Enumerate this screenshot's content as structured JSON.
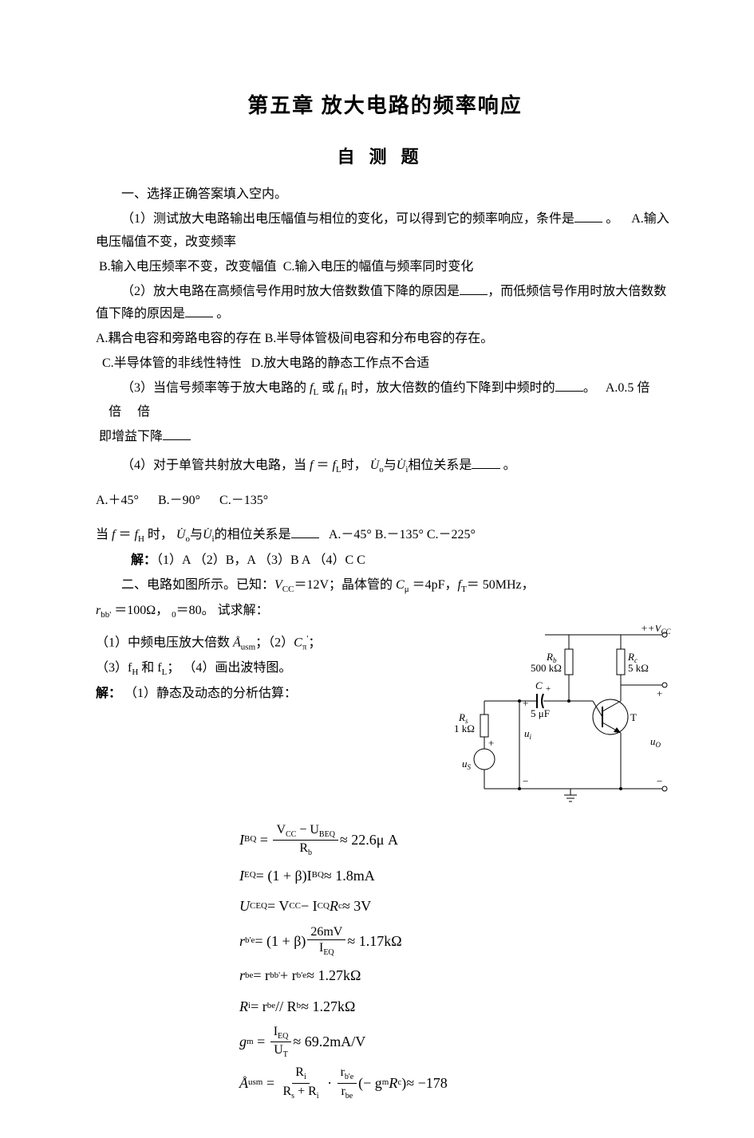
{
  "title": "第五章  放大电路的频率响应",
  "subtitle": "自测题",
  "sec1_heading": "一、选择正确答案填入空内。",
  "q1_text": "（1）测试放大电路输出电压幅值与相位的变化，可以得到它的频率响应，条件是",
  "q1_after": " 。",
  "q1_A": "A.输入电压幅值不变，改变频率",
  "q1_B": "B.输入电压频率不变，改变幅值",
  "q1_C": "C.输入电压的幅值与频率同时变化",
  "q2_text": "（2）放大电路在高频信号作用时放大倍数数值下降的原因是",
  "q2_mid": "，而低频信号作用时放大倍数数值下降的原因是",
  "q2_after": " 。",
  "q2_A": "A.耦合电容和旁路电容的存在",
  "q2_B": "B.半导体管极间电容和分布电容的存在。",
  "q2_C": "C.半导体管的非线性特性",
  "q2_D": "D.放大电路的静态工作点不合适",
  "q3_a": "（3）当信号频率等于放大电路的 ",
  "q3_fl": "f",
  "q3_flsub": "L",
  "q3_mid1": " 或 ",
  "q3_fh": "f",
  "q3_fhsub": "H",
  "q3_b": " 时，放大倍数的值约下降到中频时的",
  "q3_after1": "。",
  "q3_A": "A.0.5 倍",
  "q3_Bfill": "倍",
  "q3_Cfill": "倍",
  "q3_line2": "即增益下降",
  "q4_a": "（4）对于单管共射放大电路，当 ",
  "q4_eq1a": "f",
  "q4_eq1b": " ＝ ",
  "q4_eq1c": "f",
  "q4_eq1csub": "L",
  "q4_b": "时，",
  "q4_uo": "U̇",
  "q4_uosub": "o",
  "q4_mid": "与",
  "q4_ui": "U̇",
  "q4_uisub": "i",
  "q4_c": "相位关系是",
  "q4_after": " 。",
  "q4_A": "A.＋45°",
  "q4_B": "B.－90°",
  "q4_C": "C.－135°",
  "q4_line2a": "当 ",
  "q4_line2b": " ＝ ",
  "q4_line2fhsub": "H",
  "q4_line2c": " 时，",
  "q4_line2d": "的相位关系是",
  "q4b_A": "A.－45°",
  "q4b_B": "B.－135°",
  "q4b_C": "C.－225°",
  "ans_label": "解：",
  "ans_body": "（1）A    （2）B，A    （3）B  A    （4）C   C",
  "sec2_a": "二、电路如图所示。已知：",
  "sec2_vcc": "V",
  "sec2_vccsub": "CC",
  "sec2_vccval": "＝12V；晶体管的 ",
  "sec2_cmu": "C",
  "sec2_cmusub": "μ",
  "sec2_cmuval": " ＝4pF，",
  "sec2_ft": "f",
  "sec2_ftsub": "T",
  "sec2_ftval": "＝ 50MHz，",
  "sec2_rbb": "r",
  "sec2_rbbsub": "bb'",
  "sec2_rbbval": " ＝100Ω，   ",
  "sec2_beta0sub": "0",
  "sec2_beta0val": "＝80。 试求解：",
  "task1a": "（1）中频电压放大倍数 ",
  "task1_A": "Å",
  "task1_Asub": "usm",
  "task1b": "；（2）",
  "task1_C": "C",
  "task1_Csub": "π",
  "task1_Csup": "'",
  "task1c": "；",
  "task2": "（3）f",
  "task2_hsub": "H",
  "task2_mid": " 和 f",
  "task2_lsub": "L",
  "task2_end": "；  （4）画出波特图。",
  "sol_label": "解：",
  "sol_1": "（1）静态及动态的分析估算：",
  "f1_lhs": "I",
  "f1_lhssub": "BQ",
  "f1_num": "V<sub style='font-size:10px'>CC</sub> − U<sub style='font-size:10px'>BEQ</sub>",
  "f1_den": "R<sub style='font-size:10px'>b</sub>",
  "f1_val": " ≈ 22.6μ A",
  "f2_lhs": "I",
  "f2_lhssub": "EQ",
  "f2_rhs": " = (1 + β)I",
  "f2_rhssub": "BQ",
  "f2_val": " ≈ 1.8mA",
  "f3_lhs": "U",
  "f3_lhssub": "CEQ",
  "f3_rhs": " = V",
  "f3_rhssub1": "CC",
  "f3_mid": " − I",
  "f3_rhssub2": "CQ",
  "f3_r": " R",
  "f3_rsub": "c",
  "f3_val": " ≈ 3V",
  "f4_lhs": "r",
  "f4_lhssub": "b'e",
  "f4_a": " = (1 + β)",
  "f4_num": "26mV",
  "f4_den": "I<sub style='font-size:10px'>EQ</sub>",
  "f4_val": " ≈ 1.17kΩ",
  "f5_lhs": "r",
  "f5_lhssub": "be",
  "f5_a": " = r",
  "f5_asub": "bb'",
  "f5_b": " + r",
  "f5_bsub": "b'e",
  "f5_val": " ≈ 1.27kΩ",
  "f6_lhs": "R",
  "f6_lhssub": "i",
  "f6_a": " = r",
  "f6_asub": "be",
  "f6_b": " // R",
  "f6_bsub": "b",
  "f6_val": " ≈ 1.27kΩ",
  "f7_lhs": "g",
  "f7_lhssub": "m",
  "f7_num": "I<sub style='font-size:10px'>EQ</sub>",
  "f7_den": "U<sub style='font-size:10px'>T</sub>",
  "f7_val": " ≈ 69.2mA/V",
  "f8_lhs": "Å",
  "f8_lhssub": "usm",
  "f8_num1": "R<sub style='font-size:10px'>i</sub>",
  "f8_den1": "R<sub style='font-size:10px'>s</sub> + R<sub style='font-size:10px'>i</sub>",
  "f8_num2": "r<sub style='font-size:10px'>b'e</sub>",
  "f8_den2": "r<sub style='font-size:10px'>be</sub>",
  "f8_b": "(− g",
  "f8_bsub": "m",
  "f8_c": " R",
  "f8_csub": "c",
  "f8_d": ")",
  "f8_val": " ≈ −178",
  "circuit": {
    "Vcc": "+V",
    "Vccsub": "CC",
    "Rb": "R",
    "Rbsub": "b",
    "Rbval": "500 kΩ",
    "Rc": "R",
    "Rcsub": "c",
    "Rcval": "5 kΩ",
    "C": "C",
    "Cval": "5 μF",
    "Rs": "R",
    "Rssub": "s",
    "Rsval": "1 kΩ",
    "us": "u",
    "ussub": "S",
    "ui": "u",
    "uisub": "i",
    "uo": "u",
    "uosub": "O",
    "T": "T"
  }
}
